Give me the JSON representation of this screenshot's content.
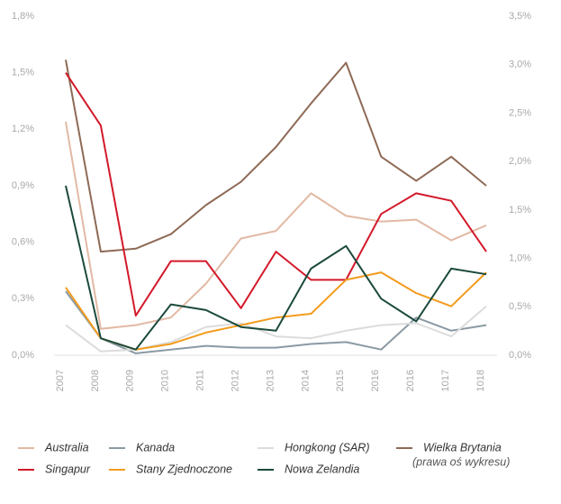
{
  "chart_data": {
    "type": "line",
    "categories": [
      "2007",
      "2008",
      "2009",
      "2010",
      "2011",
      "2012",
      "2013",
      "2014",
      "2015",
      "2016",
      "2016",
      "1017",
      "1018"
    ],
    "ylim": [
      0,
      1.8
    ],
    "yticks": [
      {
        "value": 0,
        "label": "0,0%"
      },
      {
        "value": 0.3,
        "label": "0,3%"
      },
      {
        "value": 0.6,
        "label": "0,6%"
      },
      {
        "value": 0.9,
        "label": "0,9%"
      },
      {
        "value": 1.2,
        "label": "1,2%"
      },
      {
        "value": 1.5,
        "label": "1,5%"
      },
      {
        "value": 1.8,
        "label": "1,8%"
      }
    ],
    "y2lim": [
      0,
      3.5
    ],
    "y2ticks": [
      {
        "value": 0,
        "label": "0,0%"
      },
      {
        "value": 0.5,
        "label": "0,5%"
      },
      {
        "value": 1.0,
        "label": "1,0%"
      },
      {
        "value": 1.5,
        "label": "1,5%"
      },
      {
        "value": 2.0,
        "label": "2,0%"
      },
      {
        "value": 2.5,
        "label": "2,5%"
      },
      {
        "value": 3.0,
        "label": "3,0%"
      },
      {
        "value": 3.5,
        "label": "3,5%"
      }
    ],
    "grid": false,
    "legend": "bottom",
    "right_axis_note": "(prawa oś wykresu)",
    "series": [
      {
        "name": "Australia",
        "color": "#e2b9a4",
        "values": [
          1.24,
          0.14,
          0.16,
          0.2,
          0.38,
          0.62,
          0.66,
          0.86,
          0.74,
          0.71,
          0.72,
          0.61,
          0.69
        ]
      },
      {
        "name": "Kanada",
        "color": "#8a9aa4",
        "values": [
          0.34,
          0.09,
          0.01,
          0.03,
          0.05,
          0.04,
          0.04,
          0.06,
          0.07,
          0.03,
          0.2,
          0.13,
          0.16
        ]
      },
      {
        "name": "Hongkong (SAR)",
        "color": "#dcdcdc",
        "values": [
          0.16,
          0.02,
          0.03,
          0.07,
          0.15,
          0.17,
          0.1,
          0.09,
          0.13,
          0.16,
          0.17,
          0.1,
          0.26
        ]
      },
      {
        "name": "Wielka Brytania",
        "color": "#8e6a56",
        "axis": "y2",
        "values": [
          3.05,
          1.07,
          1.1,
          1.25,
          1.55,
          1.79,
          2.15,
          2.6,
          3.02,
          2.05,
          1.8,
          2.05,
          1.75
        ]
      },
      {
        "name": "Singapur",
        "color": "#d3192a",
        "values": [
          1.5,
          1.22,
          0.21,
          0.5,
          0.5,
          0.25,
          0.55,
          0.4,
          0.4,
          0.75,
          0.86,
          0.82,
          0.55
        ]
      },
      {
        "name": "Stany Zjednoczone",
        "color": "#f39c1e",
        "values": [
          0.36,
          0.09,
          0.03,
          0.06,
          0.12,
          0.16,
          0.2,
          0.22,
          0.4,
          0.44,
          0.33,
          0.26,
          0.44
        ]
      },
      {
        "name": "Nowa Zelandia",
        "color": "#1b4a3c",
        "values": [
          0.9,
          0.09,
          0.03,
          0.27,
          0.24,
          0.15,
          0.13,
          0.46,
          0.58,
          0.3,
          0.18,
          0.46,
          0.43
        ]
      }
    ]
  }
}
